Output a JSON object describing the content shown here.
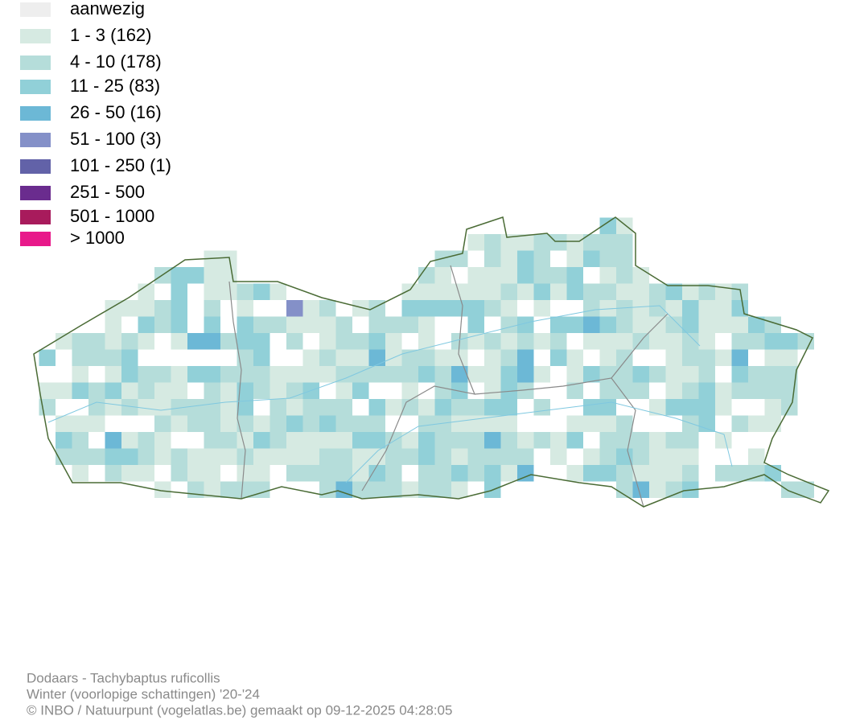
{
  "legend": {
    "items": [
      {
        "label": "aanwezig",
        "color": "#eeeeee"
      },
      {
        "label": "1 - 3 (162)",
        "color": "#d6eae2"
      },
      {
        "label": "4 - 10 (178)",
        "color": "#b5ddda"
      },
      {
        "label": "11 - 25 (83)",
        "color": "#91d0d8"
      },
      {
        "label": "26 - 50 (16)",
        "color": "#6cb8d6"
      },
      {
        "label": "51 - 100 (3)",
        "color": "#8490c8"
      },
      {
        "label": "101 - 250 (1)",
        "color": "#6262a8"
      },
      {
        "label": "251 - 500",
        "color": "#6a2c8e"
      },
      {
        "label": "501 - 1000",
        "color": "#a81b5c"
      },
      {
        "label": "> 1000",
        "color": "#e8198a"
      }
    ]
  },
  "footer": {
    "lines": [
      "Dodaars - Tachybaptus ruficollis",
      "Winter (voorlopige schattingen) '20-'24",
      "© INBO / Natuurpunt (vogelatlas.be) gemaakt op 09-12-2025 04:28:05"
    ]
  }
}
